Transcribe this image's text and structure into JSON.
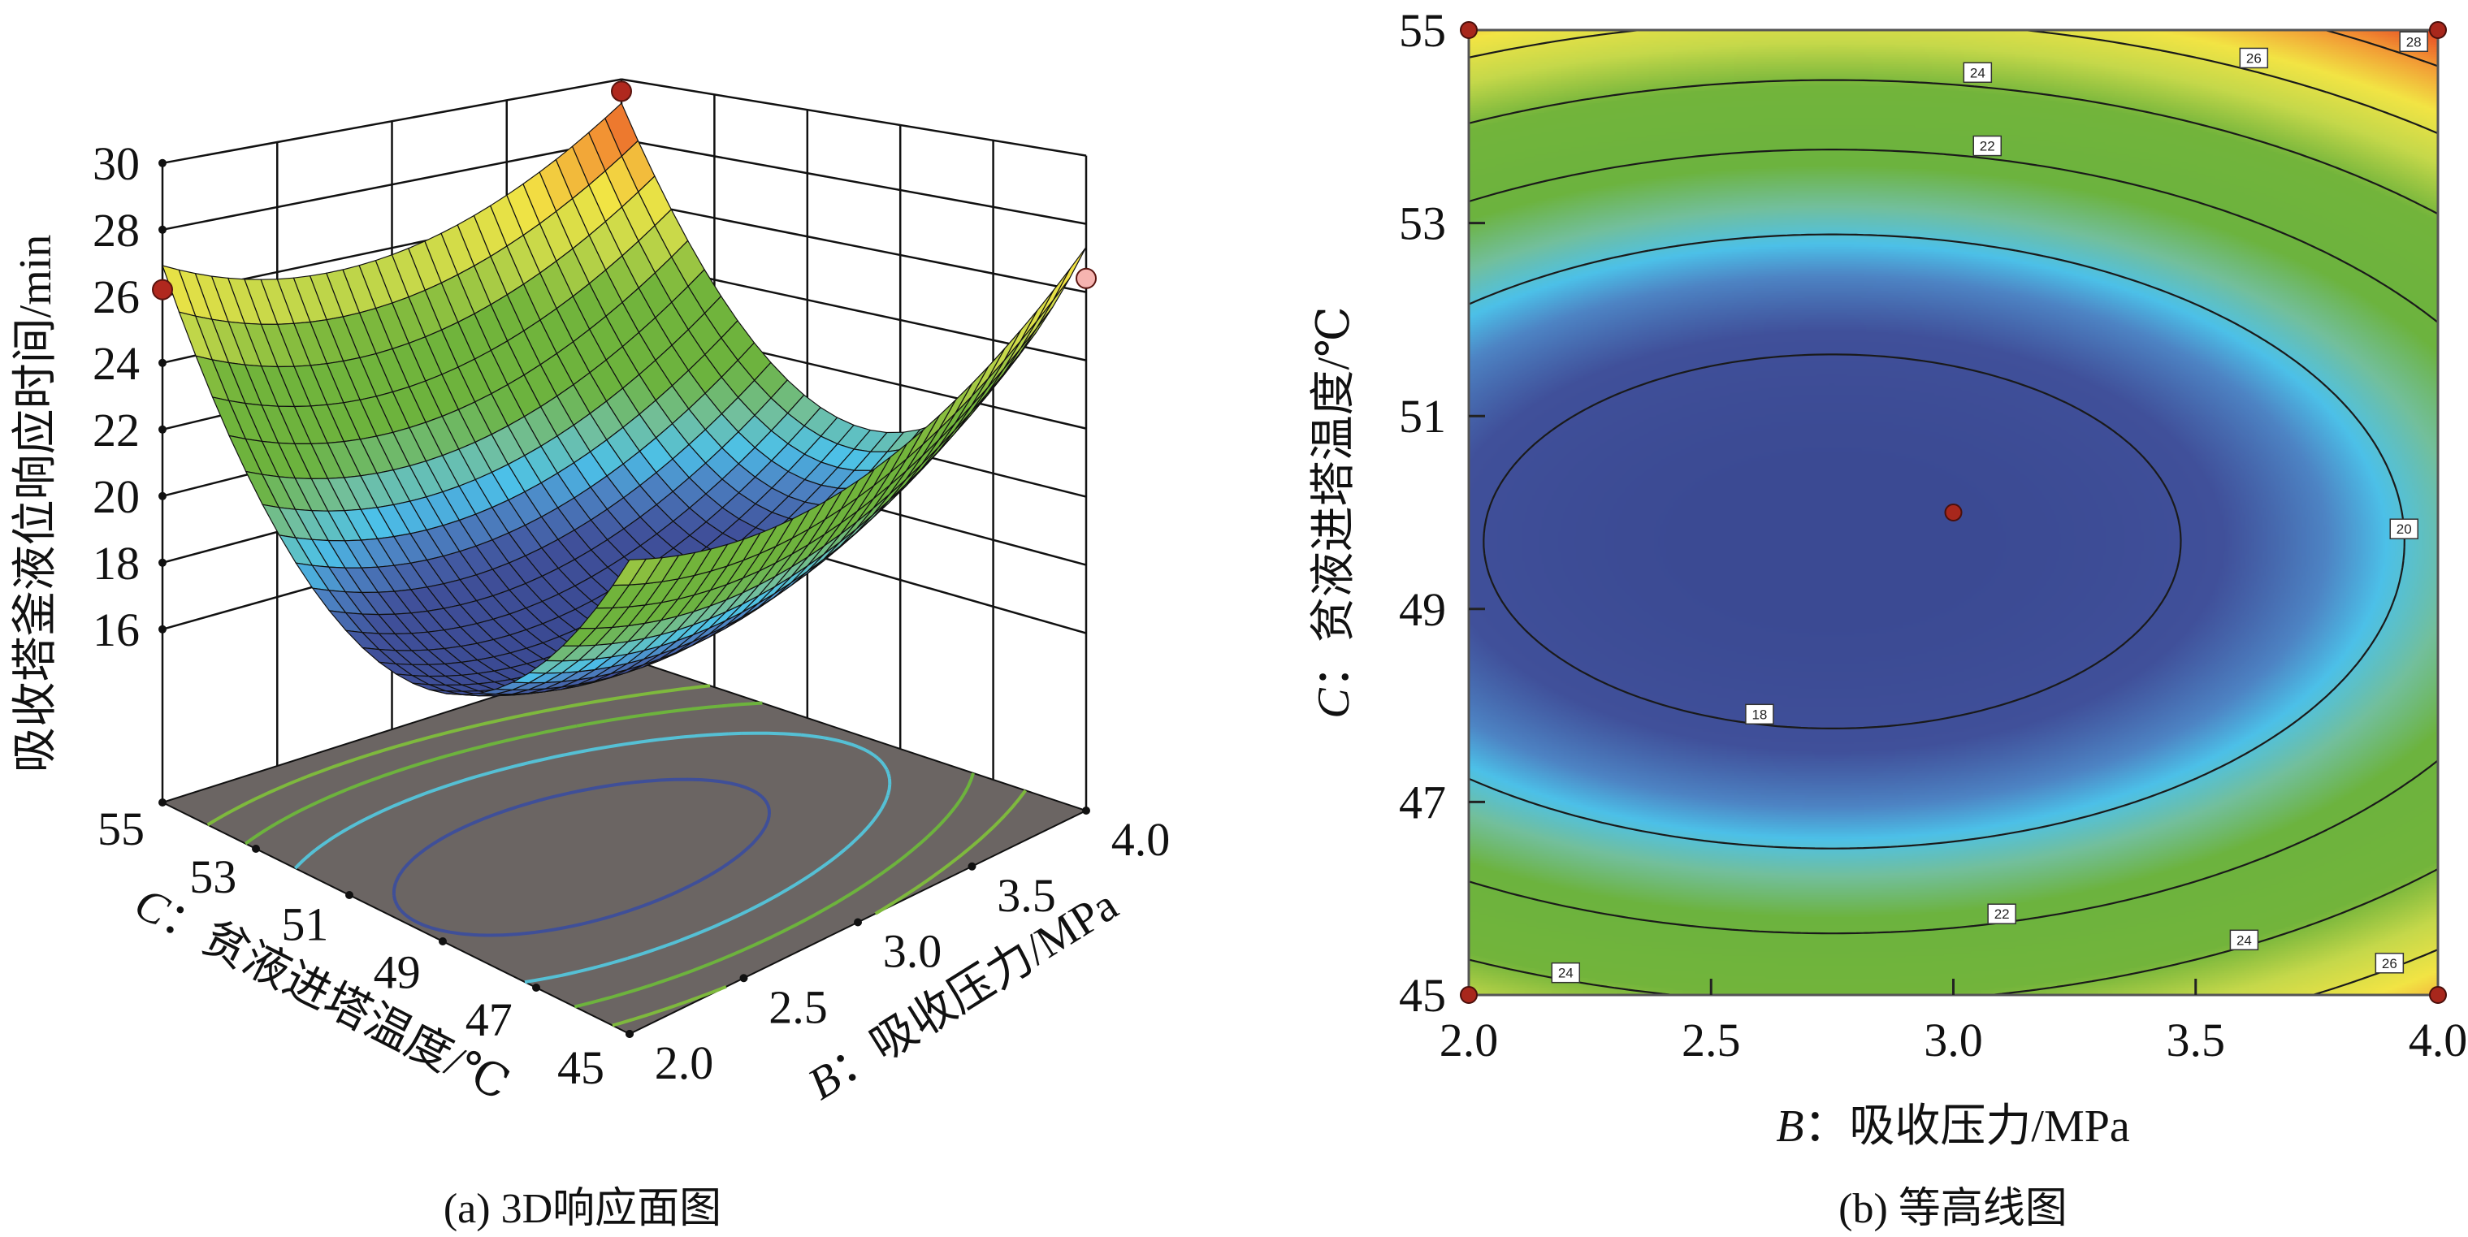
{
  "response_model": {
    "form": "quadratic",
    "intercept": 16.82,
    "b_coef": 2.28,
    "b_center": 2.75,
    "c_coef": 0.314,
    "c_center": 49.7
  },
  "colorscale": [
    [
      17,
      "#3b4a93"
    ],
    [
      18.3,
      "#40509a"
    ],
    [
      19.2,
      "#4d84c4"
    ],
    [
      19.8,
      "#4cc0e8"
    ],
    [
      20.6,
      "#72bf9c"
    ],
    [
      21.6,
      "#6cb33e"
    ],
    [
      23.8,
      "#72b43b"
    ],
    [
      25.2,
      "#c5d84a"
    ],
    [
      26.6,
      "#f2e444"
    ],
    [
      28,
      "#f29634"
    ],
    [
      29.5,
      "#e2301e"
    ]
  ],
  "chart_data": [
    {
      "type": "surface3d",
      "caption": "(a) 3D响应面图",
      "zlabel": "吸收塔釜液位响应时间/min",
      "xlabel_var": "B",
      "xlabel": "：吸收压力/MPa",
      "ylabel_var": "C",
      "ylabel": "：贫液进塔温度/℃",
      "x_ticks": [
        "2.0",
        "2.5",
        "3.0",
        "3.5",
        "4.0"
      ],
      "y_ticks": [
        "45",
        "47",
        "49",
        "51",
        "53",
        "55"
      ],
      "z_ticks": [
        "16",
        "18",
        "20",
        "22",
        "24",
        "26",
        "28",
        "30"
      ],
      "xlim": [
        2,
        4
      ],
      "ylim": [
        45,
        55
      ],
      "zlim": [
        16,
        30
      ],
      "floor_color": "#6b6563",
      "floor_contour_levels": [
        18,
        20,
        22,
        24
      ],
      "design_points": [
        {
          "B": 2,
          "C": 55,
          "Y": 26.2,
          "color": "#b0281e"
        },
        {
          "B": 4,
          "C": 55,
          "Y": 29.6,
          "color": "#b0281e"
        },
        {
          "B": 4,
          "C": 45,
          "Y": 26.4,
          "color": "#f6b4b0"
        }
      ]
    },
    {
      "type": "contour",
      "caption": "(b) 等高线图",
      "xlabel_var": "B",
      "xlabel": "：吸收压力/MPa",
      "ylabel_var": "C",
      "ylabel": "：贫液进塔温度/℃",
      "x_ticks": [
        "2.0",
        "2.5",
        "3.0",
        "3.5",
        "4.0"
      ],
      "y_ticks": [
        "45",
        "47",
        "49",
        "51",
        "53",
        "55"
      ],
      "xlim": [
        2,
        4
      ],
      "ylim": [
        45,
        55
      ],
      "levels": [
        18,
        20,
        22,
        24,
        26,
        28
      ],
      "contour_labels": [
        {
          "text": "24",
          "B": 3.05,
          "C": 54.56
        },
        {
          "text": "22",
          "B": 3.07,
          "C": 53.8
        },
        {
          "text": "26",
          "B": 3.62,
          "C": 54.71
        },
        {
          "text": "28",
          "B": 3.95,
          "C": 54.88
        },
        {
          "text": "20",
          "B": 3.93,
          "C": 49.83
        },
        {
          "text": "18",
          "B": 2.6,
          "C": 47.91
        },
        {
          "text": "22",
          "B": 3.1,
          "C": 45.84
        },
        {
          "text": "24",
          "B": 3.6,
          "C": 45.57
        },
        {
          "text": "26",
          "B": 3.9,
          "C": 45.33
        },
        {
          "text": "24",
          "B": 2.2,
          "C": 45.23
        }
      ],
      "design_points": [
        {
          "B": 2,
          "C": 55
        },
        {
          "B": 4,
          "C": 55
        },
        {
          "B": 2,
          "C": 45
        },
        {
          "B": 4,
          "C": 45
        },
        {
          "B": 3,
          "C": 50
        }
      ],
      "point_color": "#a8271c"
    }
  ]
}
